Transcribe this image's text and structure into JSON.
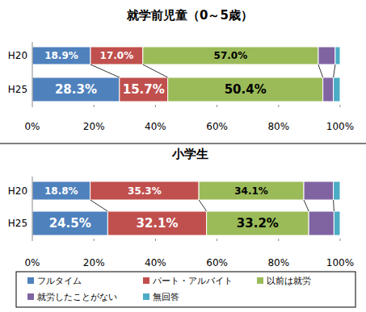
{
  "chart_data": [
    {
      "type": "bar",
      "title": "就学前児童（0～5歳）",
      "orientation": "horizontal",
      "stacked": true,
      "data_labels": true,
      "categories": [
        "H20",
        "H25"
      ],
      "series": [
        {
          "name": "フルタイム",
          "color": "#4f81bd",
          "values": [
            18.9,
            28.3
          ],
          "value_labels": [
            "18.9%",
            "28.3%"
          ]
        },
        {
          "name": "パート・アルバイト",
          "color": "#c0504d",
          "values": [
            17.0,
            15.7
          ],
          "value_labels": [
            "17.0%",
            "15.7%"
          ]
        },
        {
          "name": "以前は就労",
          "color": "#9bbb59",
          "values": [
            57.0,
            50.4
          ],
          "value_labels": [
            "57.0%",
            "50.4%"
          ]
        },
        {
          "name": "就労したことがない",
          "color": "#8064a2",
          "values": [
            5.5,
            3.4
          ]
        },
        {
          "name": "無回答",
          "color": "#4bacc6",
          "values": [
            1.6,
            2.2
          ]
        }
      ],
      "xlim": [
        0,
        100
      ],
      "xticks": [
        {
          "value": 0,
          "label": "0%"
        },
        {
          "value": 20,
          "label": "20%"
        },
        {
          "value": 40,
          "label": "40%"
        },
        {
          "value": 60,
          "label": "60%"
        },
        {
          "value": 80,
          "label": "80%"
        },
        {
          "value": 100,
          "label": "100%"
        }
      ]
    },
    {
      "type": "bar",
      "title": "小学生",
      "orientation": "horizontal",
      "stacked": true,
      "data_labels": true,
      "legend": "bottom",
      "categories": [
        "H20",
        "H25"
      ],
      "series": [
        {
          "name": "フルタイム",
          "color": "#4f81bd",
          "values": [
            18.8,
            24.5
          ],
          "value_labels": [
            "18.8%",
            "24.5%"
          ]
        },
        {
          "name": "パート・アルバイト",
          "color": "#c0504d",
          "values": [
            35.3,
            32.1
          ],
          "value_labels": [
            "35.3%",
            "32.1%"
          ]
        },
        {
          "name": "以前は就労",
          "color": "#9bbb59",
          "values": [
            34.1,
            33.2
          ],
          "value_labels": [
            "34.1%",
            "33.2%"
          ]
        },
        {
          "name": "就労したことがない",
          "color": "#8064a2",
          "values": [
            9.6,
            8.2
          ]
        },
        {
          "name": "無回答",
          "color": "#4bacc6",
          "values": [
            2.2,
            2.0
          ]
        }
      ],
      "xlim": [
        0,
        100
      ],
      "xticks": [
        {
          "value": 0,
          "label": "0%"
        },
        {
          "value": 20,
          "label": "20%"
        },
        {
          "value": 40,
          "label": "40%"
        },
        {
          "value": 60,
          "label": "60%"
        },
        {
          "value": 80,
          "label": "80%"
        },
        {
          "value": 100,
          "label": "100%"
        }
      ]
    }
  ]
}
